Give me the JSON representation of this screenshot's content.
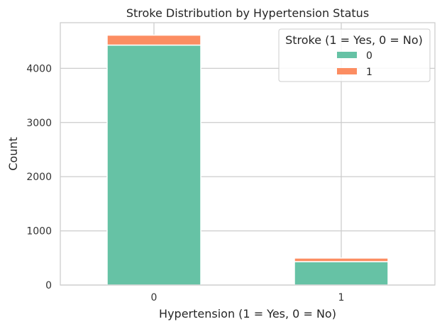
{
  "chart_data": {
    "type": "bar",
    "stacked": true,
    "title": "Stroke Distribution by Hypertension Status",
    "xlabel": "Hypertension (1 = Yes, 0 = No)",
    "ylabel": "Count",
    "categories": [
      "0",
      "1"
    ],
    "series": [
      {
        "name": "0",
        "values": [
          4429,
          432
        ],
        "color": "#66c2a5"
      },
      {
        "name": "1",
        "values": [
          183,
          66
        ],
        "color": "#fc8d62"
      }
    ],
    "yticks": [
      0,
      1000,
      2000,
      3000,
      4000
    ],
    "ylim": [
      0,
      4842
    ],
    "grid": true,
    "legend": {
      "title": "Stroke (1 = Yes, 0 = No)",
      "position": "top-right"
    }
  }
}
